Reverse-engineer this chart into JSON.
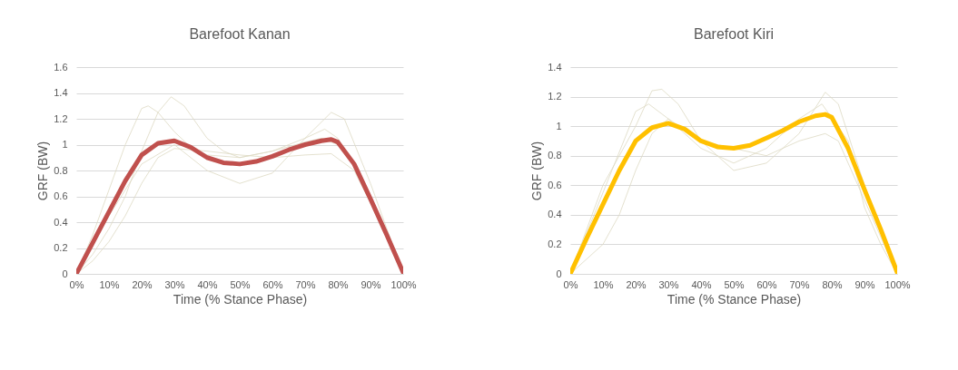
{
  "chart_data": [
    {
      "type": "line",
      "title": "Barefoot Kanan",
      "xlabel": "Time (% Stance Phase)",
      "ylabel": "GRF (BW)",
      "xlim": [
        0,
        100
      ],
      "ylim": [
        0,
        1.6
      ],
      "xticks": [
        {
          "value": 0,
          "label": "0%"
        },
        {
          "value": 10,
          "label": "10%"
        },
        {
          "value": 20,
          "label": "20%"
        },
        {
          "value": 30,
          "label": "30%"
        },
        {
          "value": 40,
          "label": "40%"
        },
        {
          "value": 50,
          "label": "50%"
        },
        {
          "value": 60,
          "label": "60%"
        },
        {
          "value": 70,
          "label": "70%"
        },
        {
          "value": 80,
          "label": "80%"
        },
        {
          "value": 90,
          "label": "90%"
        },
        {
          "value": 100,
          "label": "100%"
        }
      ],
      "yticks": [
        0,
        0.2,
        0.4,
        0.6,
        0.8,
        1,
        1.2,
        1.4,
        1.6
      ],
      "grid": "y",
      "series": [
        {
          "color": "#ddd9c3",
          "x": [
            0,
            5,
            10,
            15,
            20,
            22,
            25,
            30,
            35,
            40,
            50,
            60,
            70,
            75,
            80,
            85,
            90,
            95,
            100
          ],
          "values": [
            0,
            0.3,
            0.65,
            1.0,
            1.28,
            1.3,
            1.25,
            1.1,
            0.98,
            0.92,
            0.9,
            0.95,
            1.02,
            1.05,
            1.0,
            0.85,
            0.6,
            0.3,
            0
          ]
        },
        {
          "color": "#ddd9c3",
          "x": [
            0,
            5,
            10,
            15,
            20,
            25,
            29,
            33,
            40,
            45,
            50,
            60,
            70,
            76,
            80,
            90,
            100
          ],
          "values": [
            0,
            0.15,
            0.35,
            0.6,
            0.95,
            1.25,
            1.37,
            1.3,
            1.05,
            0.95,
            0.9,
            0.95,
            1.05,
            1.12,
            1.05,
            0.6,
            0
          ]
        },
        {
          "color": "#ddd9c3",
          "x": [
            0,
            10,
            20,
            30,
            40,
            50,
            60,
            70,
            78,
            82,
            90,
            100
          ],
          "values": [
            0,
            0.45,
            0.85,
            1.0,
            0.8,
            0.7,
            0.78,
            1.05,
            1.25,
            1.2,
            0.7,
            0
          ]
        },
        {
          "color": "#ddd9c3",
          "x": [
            0,
            5,
            10,
            15,
            20,
            25,
            30,
            40,
            50,
            60,
            70,
            78,
            85,
            90,
            100
          ],
          "values": [
            0,
            0.1,
            0.25,
            0.45,
            0.7,
            0.9,
            0.97,
            0.95,
            0.92,
            0.9,
            0.92,
            0.93,
            0.8,
            0.55,
            0
          ]
        },
        {
          "color": "#c0504d",
          "x": [
            0,
            5,
            10,
            15,
            20,
            25,
            30,
            35,
            40,
            45,
            50,
            55,
            60,
            65,
            70,
            75,
            78,
            80,
            85,
            90,
            95,
            100
          ],
          "values": [
            0,
            0.24,
            0.48,
            0.72,
            0.92,
            1.01,
            1.03,
            0.98,
            0.9,
            0.86,
            0.85,
            0.87,
            0.91,
            0.96,
            1.0,
            1.03,
            1.04,
            1.02,
            0.85,
            0.58,
            0.3,
            0.01
          ]
        }
      ]
    },
    {
      "type": "line",
      "title": "Barefoot Kiri",
      "xlabel": "Time (% Stance Phase)",
      "ylabel": "GRF (BW)",
      "xlim": [
        0,
        100
      ],
      "ylim": [
        0,
        1.4
      ],
      "xticks": [
        {
          "value": 0,
          "label": "0%"
        },
        {
          "value": 10,
          "label": "10%"
        },
        {
          "value": 20,
          "label": "20%"
        },
        {
          "value": 30,
          "label": "30%"
        },
        {
          "value": 40,
          "label": "40%"
        },
        {
          "value": 50,
          "label": "50%"
        },
        {
          "value": 60,
          "label": "60%"
        },
        {
          "value": 70,
          "label": "70%"
        },
        {
          "value": 80,
          "label": "80%"
        },
        {
          "value": 90,
          "label": "90%"
        },
        {
          "value": 100,
          "label": "100%"
        }
      ],
      "yticks": [
        0,
        0.2,
        0.4,
        0.6,
        0.8,
        1,
        1.2,
        1.4
      ],
      "grid": "y",
      "series": [
        {
          "color": "#ddd9c3",
          "x": [
            0,
            10,
            20,
            25,
            28,
            33,
            40,
            50,
            60,
            70,
            78,
            82,
            90,
            100
          ],
          "values": [
            0,
            0.6,
            1.0,
            1.24,
            1.25,
            1.15,
            0.9,
            0.7,
            0.75,
            0.95,
            1.23,
            1.15,
            0.6,
            0
          ]
        },
        {
          "color": "#ddd9c3",
          "x": [
            0,
            5,
            10,
            15,
            20,
            25,
            30,
            40,
            50,
            60,
            70,
            78,
            82,
            90,
            100
          ],
          "values": [
            0,
            0.1,
            0.2,
            0.4,
            0.7,
            0.95,
            1.05,
            0.9,
            0.85,
            0.8,
            0.9,
            0.95,
            0.9,
            0.5,
            0
          ]
        },
        {
          "color": "#ddd9c3",
          "x": [
            0,
            10,
            20,
            24,
            30,
            40,
            50,
            60,
            70,
            77,
            85,
            90,
            95,
            100
          ],
          "values": [
            0,
            0.55,
            1.1,
            1.15,
            1.05,
            0.85,
            0.75,
            0.85,
            1.05,
            1.15,
            0.9,
            0.45,
            0.2,
            0
          ]
        },
        {
          "color": "#ffc000",
          "x": [
            0,
            5,
            10,
            15,
            20,
            25,
            30,
            35,
            40,
            45,
            50,
            55,
            60,
            65,
            70,
            75,
            78,
            80,
            85,
            90,
            95,
            100
          ],
          "values": [
            0,
            0.24,
            0.47,
            0.7,
            0.9,
            0.99,
            1.02,
            0.98,
            0.9,
            0.86,
            0.85,
            0.87,
            0.92,
            0.97,
            1.03,
            1.07,
            1.08,
            1.06,
            0.85,
            0.57,
            0.3,
            0.01
          ]
        }
      ]
    }
  ]
}
